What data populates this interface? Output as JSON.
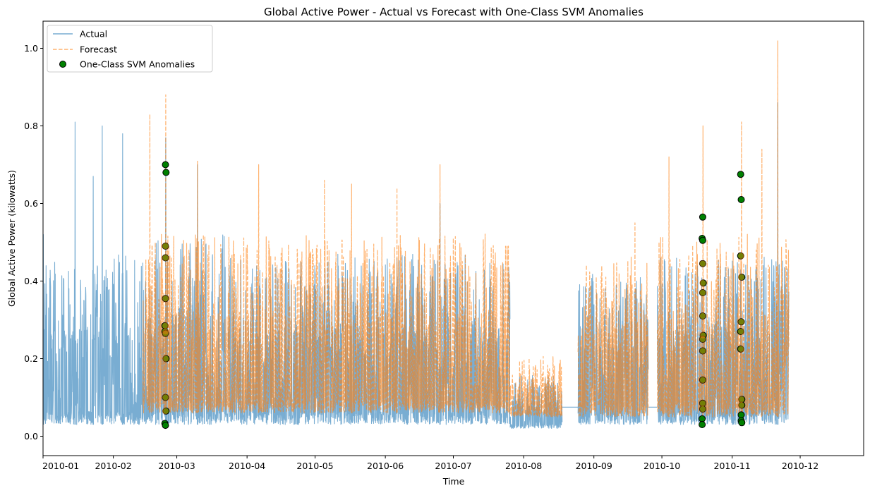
{
  "chart_data": {
    "type": "line",
    "title": "Global Active Power - Actual vs Forecast with One-Class SVM Anomalies",
    "xlabel": "Time",
    "ylabel": "Global Active Power (kilowatts)",
    "xlim": [
      "2010-01-01",
      "2010-12-29"
    ],
    "ylim": [
      -0.05,
      1.07
    ],
    "xticks": [
      "2010-01",
      "2010-02",
      "2010-03",
      "2010-04",
      "2010-05",
      "2010-06",
      "2010-07",
      "2010-08",
      "2010-09",
      "2010-10",
      "2010-11",
      "2010-12"
    ],
    "yticks": [
      "0.0",
      "0.2",
      "0.4",
      "0.6",
      "0.8",
      "1.0"
    ],
    "legend_position": "upper-left",
    "colors": {
      "actual": "#1f77b4",
      "forecast": "#ff7f0e",
      "anomaly": "#008000"
    },
    "series": [
      {
        "name": "Actual",
        "style": "solid",
        "opacity": 0.6,
        "segments": [
          {
            "start": "2010-01-01",
            "end": "2010-02-14",
            "base": 0.03,
            "typical_high": 0.45,
            "peaks": [
              [
                "2010-01-01",
                0.52
              ],
              [
                "2010-01-15",
                0.81
              ],
              [
                "2010-01-23",
                0.67
              ],
              [
                "2010-01-27",
                0.8
              ],
              [
                "2010-02-05",
                0.78
              ]
            ]
          },
          {
            "start": "2010-02-14",
            "end": "2010-03-22",
            "base": 0.03,
            "typical_high": 0.5,
            "peaks": [
              [
                "2010-02-24",
                0.77
              ],
              [
                "2010-03-10",
                0.7
              ]
            ]
          },
          {
            "start": "2010-03-22",
            "end": "2010-07-26",
            "base": 0.03,
            "typical_high": 0.45,
            "peaks": [
              [
                "2010-06-25",
                0.6
              ]
            ]
          },
          {
            "start": "2010-07-26",
            "end": "2010-08-18",
            "base": 0.02,
            "typical_high": 0.15,
            "peaks": []
          },
          {
            "start": "2010-08-18",
            "end": "2010-08-25",
            "flat": 0.075
          },
          {
            "start": "2010-08-25",
            "end": "2010-09-25",
            "base": 0.03,
            "typical_high": 0.4,
            "peaks": []
          },
          {
            "start": "2010-09-25",
            "end": "2010-09-29",
            "flat": 0.075
          },
          {
            "start": "2010-09-29",
            "end": "2010-11-26",
            "base": 0.03,
            "typical_high": 0.45,
            "peaks": [
              [
                "2010-11-21",
                0.86
              ]
            ]
          }
        ]
      },
      {
        "name": "Forecast",
        "style": "dashed",
        "opacity": 0.6,
        "segments": [
          {
            "start": "2010-02-14",
            "end": "2010-07-26",
            "base": 0.06,
            "typical_high": 0.5,
            "peaks": [
              [
                "2010-02-17",
                0.83
              ],
              [
                "2010-02-24",
                0.88
              ],
              [
                "2010-03-10",
                0.71
              ],
              [
                "2010-04-06",
                0.7
              ],
              [
                "2010-05-05",
                0.66
              ],
              [
                "2010-05-17",
                0.65
              ],
              [
                "2010-06-06",
                0.64
              ],
              [
                "2010-06-25",
                0.7
              ]
            ]
          },
          {
            "start": "2010-07-26",
            "end": "2010-08-18",
            "base": 0.05,
            "typical_high": 0.2,
            "peaks": []
          },
          {
            "start": "2010-08-25",
            "end": "2010-09-25",
            "base": 0.05,
            "typical_high": 0.45,
            "peaks": [
              [
                "2010-09-19",
                0.55
              ]
            ]
          },
          {
            "start": "2010-09-29",
            "end": "2010-11-26",
            "base": 0.05,
            "typical_high": 0.5,
            "peaks": [
              [
                "2010-10-04",
                0.72
              ],
              [
                "2010-10-19",
                0.8
              ],
              [
                "2010-11-05",
                0.81
              ],
              [
                "2010-11-14",
                0.74
              ],
              [
                "2010-11-21",
                1.02
              ]
            ]
          }
        ]
      }
    ],
    "anomalies": {
      "name": "One-Class SVM Anomalies",
      "points": [
        [
          "2010-02-24",
          0.7
        ],
        [
          "2010-02-24",
          0.68
        ],
        [
          "2010-02-24",
          0.49
        ],
        [
          "2010-02-24",
          0.46
        ],
        [
          "2010-02-24",
          0.355
        ],
        [
          "2010-02-24",
          0.285
        ],
        [
          "2010-02-24",
          0.27
        ],
        [
          "2010-02-24",
          0.265
        ],
        [
          "2010-02-24",
          0.2
        ],
        [
          "2010-02-24",
          0.1
        ],
        [
          "2010-02-24",
          0.065
        ],
        [
          "2010-02-24",
          0.033
        ],
        [
          "2010-02-24",
          0.028
        ],
        [
          "2010-10-19",
          0.565
        ],
        [
          "2010-10-19",
          0.51
        ],
        [
          "2010-10-19",
          0.505
        ],
        [
          "2010-10-19",
          0.445
        ],
        [
          "2010-10-19",
          0.395
        ],
        [
          "2010-10-19",
          0.37
        ],
        [
          "2010-10-19",
          0.31
        ],
        [
          "2010-10-19",
          0.26
        ],
        [
          "2010-10-19",
          0.25
        ],
        [
          "2010-10-19",
          0.22
        ],
        [
          "2010-10-19",
          0.145
        ],
        [
          "2010-10-19",
          0.085
        ],
        [
          "2010-10-19",
          0.07
        ],
        [
          "2010-10-19",
          0.045
        ],
        [
          "2010-10-19",
          0.03
        ],
        [
          "2010-11-05",
          0.675
        ],
        [
          "2010-11-05",
          0.61
        ],
        [
          "2010-11-05",
          0.465
        ],
        [
          "2010-11-05",
          0.41
        ],
        [
          "2010-11-05",
          0.295
        ],
        [
          "2010-11-05",
          0.27
        ],
        [
          "2010-11-05",
          0.225
        ],
        [
          "2010-11-05",
          0.095
        ],
        [
          "2010-11-05",
          0.08
        ],
        [
          "2010-11-05",
          0.055
        ],
        [
          "2010-11-05",
          0.04
        ],
        [
          "2010-11-05",
          0.035
        ]
      ]
    }
  }
}
